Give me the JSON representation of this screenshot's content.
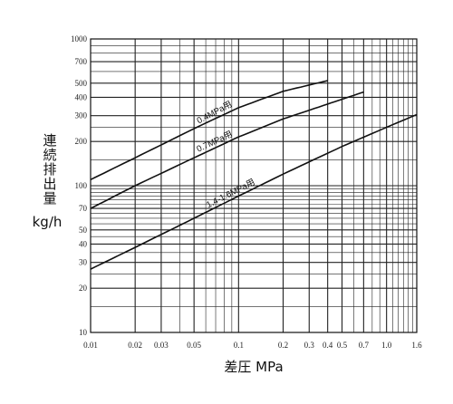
{
  "chart_data": {
    "type": "line",
    "title": "",
    "xlabel": "差圧 MPa",
    "ylabel_lines": [
      "連",
      "続",
      "排",
      "出",
      "量"
    ],
    "ylabel_unit": "kg/h",
    "xscale": "log",
    "yscale": "log",
    "xlim": [
      0.01,
      1.6
    ],
    "ylim": [
      10,
      1000
    ],
    "grid": true,
    "x_ticks": [
      {
        "v": 0.01,
        "label": "0.01"
      },
      {
        "v": 0.02,
        "label": "0.02"
      },
      {
        "v": 0.03,
        "label": "0.03"
      },
      {
        "v": 0.05,
        "label": "0.05"
      },
      {
        "v": 0.1,
        "label": "0.1"
      },
      {
        "v": 0.2,
        "label": "0.2"
      },
      {
        "v": 0.3,
        "label": "0.3"
      },
      {
        "v": 0.4,
        "label": "0.4"
      },
      {
        "v": 0.5,
        "label": "0.5"
      },
      {
        "v": 0.7,
        "label": "0.7"
      },
      {
        "v": 1.0,
        "label": "1.0"
      },
      {
        "v": 1.6,
        "label": "1.6"
      }
    ],
    "y_ticks": [
      {
        "v": 10,
        "label": "10"
      },
      {
        "v": 20,
        "label": "20"
      },
      {
        "v": 30,
        "label": "30"
      },
      {
        "v": 40,
        "label": "40"
      },
      {
        "v": 50,
        "label": "50"
      },
      {
        "v": 70,
        "label": "70"
      },
      {
        "v": 100,
        "label": "100"
      },
      {
        "v": 200,
        "label": "200"
      },
      {
        "v": 300,
        "label": "300"
      },
      {
        "v": 400,
        "label": "400"
      },
      {
        "v": 500,
        "label": "500"
      },
      {
        "v": 700,
        "label": "700"
      },
      {
        "v": 1000,
        "label": "1000"
      }
    ],
    "series": [
      {
        "name": "0.4MPa用",
        "x": [
          0.01,
          0.02,
          0.05,
          0.1,
          0.2,
          0.4
        ],
        "y": [
          110,
          155,
          245,
          340,
          440,
          520
        ]
      },
      {
        "name": "0.7MPa用",
        "x": [
          0.01,
          0.02,
          0.05,
          0.1,
          0.2,
          0.4,
          0.7
        ],
        "y": [
          70,
          100,
          155,
          215,
          285,
          360,
          435
        ]
      },
      {
        "name": "1.4-1.6MPa用",
        "x": [
          0.01,
          0.02,
          0.05,
          0.1,
          0.2,
          0.5,
          1.0,
          1.6
        ],
        "y": [
          27,
          38,
          60,
          85,
          120,
          185,
          250,
          305
        ]
      }
    ],
    "curve_label_positions": [
      0.07,
      0.07,
      0.09
    ],
    "curve_label_rotations": [
      -28,
      -25,
      -27
    ]
  }
}
